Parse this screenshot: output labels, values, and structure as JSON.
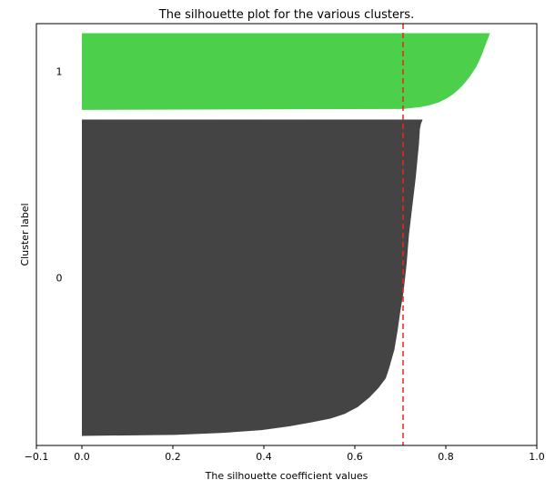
{
  "chart_data": {
    "type": "area",
    "title": "The silhouette plot for the various clusters.",
    "xlabel": "The silhouette coefficient values",
    "ylabel": "Cluster label",
    "xlim": [
      -0.1,
      1.0
    ],
    "xticks": [
      -0.1,
      0.0,
      0.2,
      0.4,
      0.6,
      0.8,
      1.0
    ],
    "xtick_labels": [
      "−0.1",
      "0.0",
      "0.2",
      "0.4",
      "0.6",
      "0.8",
      "1.0"
    ],
    "yticks": [
      "0",
      "1"
    ],
    "grid": false,
    "average_silhouette": 0.706,
    "average_line_color": "#e8261f",
    "clusters": [
      {
        "label": "0",
        "color": "#444444",
        "count": 330,
        "profile": [
          [
            0,
            0.749
          ],
          [
            5,
            0.745
          ],
          [
            10,
            0.743
          ],
          [
            25,
            0.741
          ],
          [
            40,
            0.738
          ],
          [
            60,
            0.734
          ],
          [
            80,
            0.729
          ],
          [
            100,
            0.724
          ],
          [
            120,
            0.719
          ],
          [
            150,
            0.714
          ],
          [
            180,
            0.707
          ],
          [
            200,
            0.7
          ],
          [
            220,
            0.694
          ],
          [
            240,
            0.687
          ],
          [
            260,
            0.675
          ],
          [
            270,
            0.668
          ],
          [
            280,
            0.652
          ],
          [
            290,
            0.632
          ],
          [
            300,
            0.606
          ],
          [
            307,
            0.578
          ],
          [
            312,
            0.546
          ],
          [
            316,
            0.503
          ],
          [
            320,
            0.457
          ],
          [
            324,
            0.395
          ],
          [
            327,
            0.306
          ],
          [
            329,
            0.205
          ],
          [
            330,
            0.0
          ]
        ]
      },
      {
        "label": "1",
        "color": "#4cd04c",
        "count": 80,
        "profile": [
          [
            0,
            0.897
          ],
          [
            5,
            0.893
          ],
          [
            10,
            0.889
          ],
          [
            15,
            0.885
          ],
          [
            20,
            0.881
          ],
          [
            25,
            0.877
          ],
          [
            30,
            0.872
          ],
          [
            35,
            0.867
          ],
          [
            40,
            0.86
          ],
          [
            45,
            0.853
          ],
          [
            50,
            0.845
          ],
          [
            55,
            0.836
          ],
          [
            60,
            0.825
          ],
          [
            64,
            0.815
          ],
          [
            68,
            0.802
          ],
          [
            72,
            0.785
          ],
          [
            75,
            0.765
          ],
          [
            77,
            0.745
          ],
          [
            78,
            0.726
          ],
          [
            79,
            0.706
          ],
          [
            80,
            0.0
          ]
        ]
      }
    ]
  }
}
